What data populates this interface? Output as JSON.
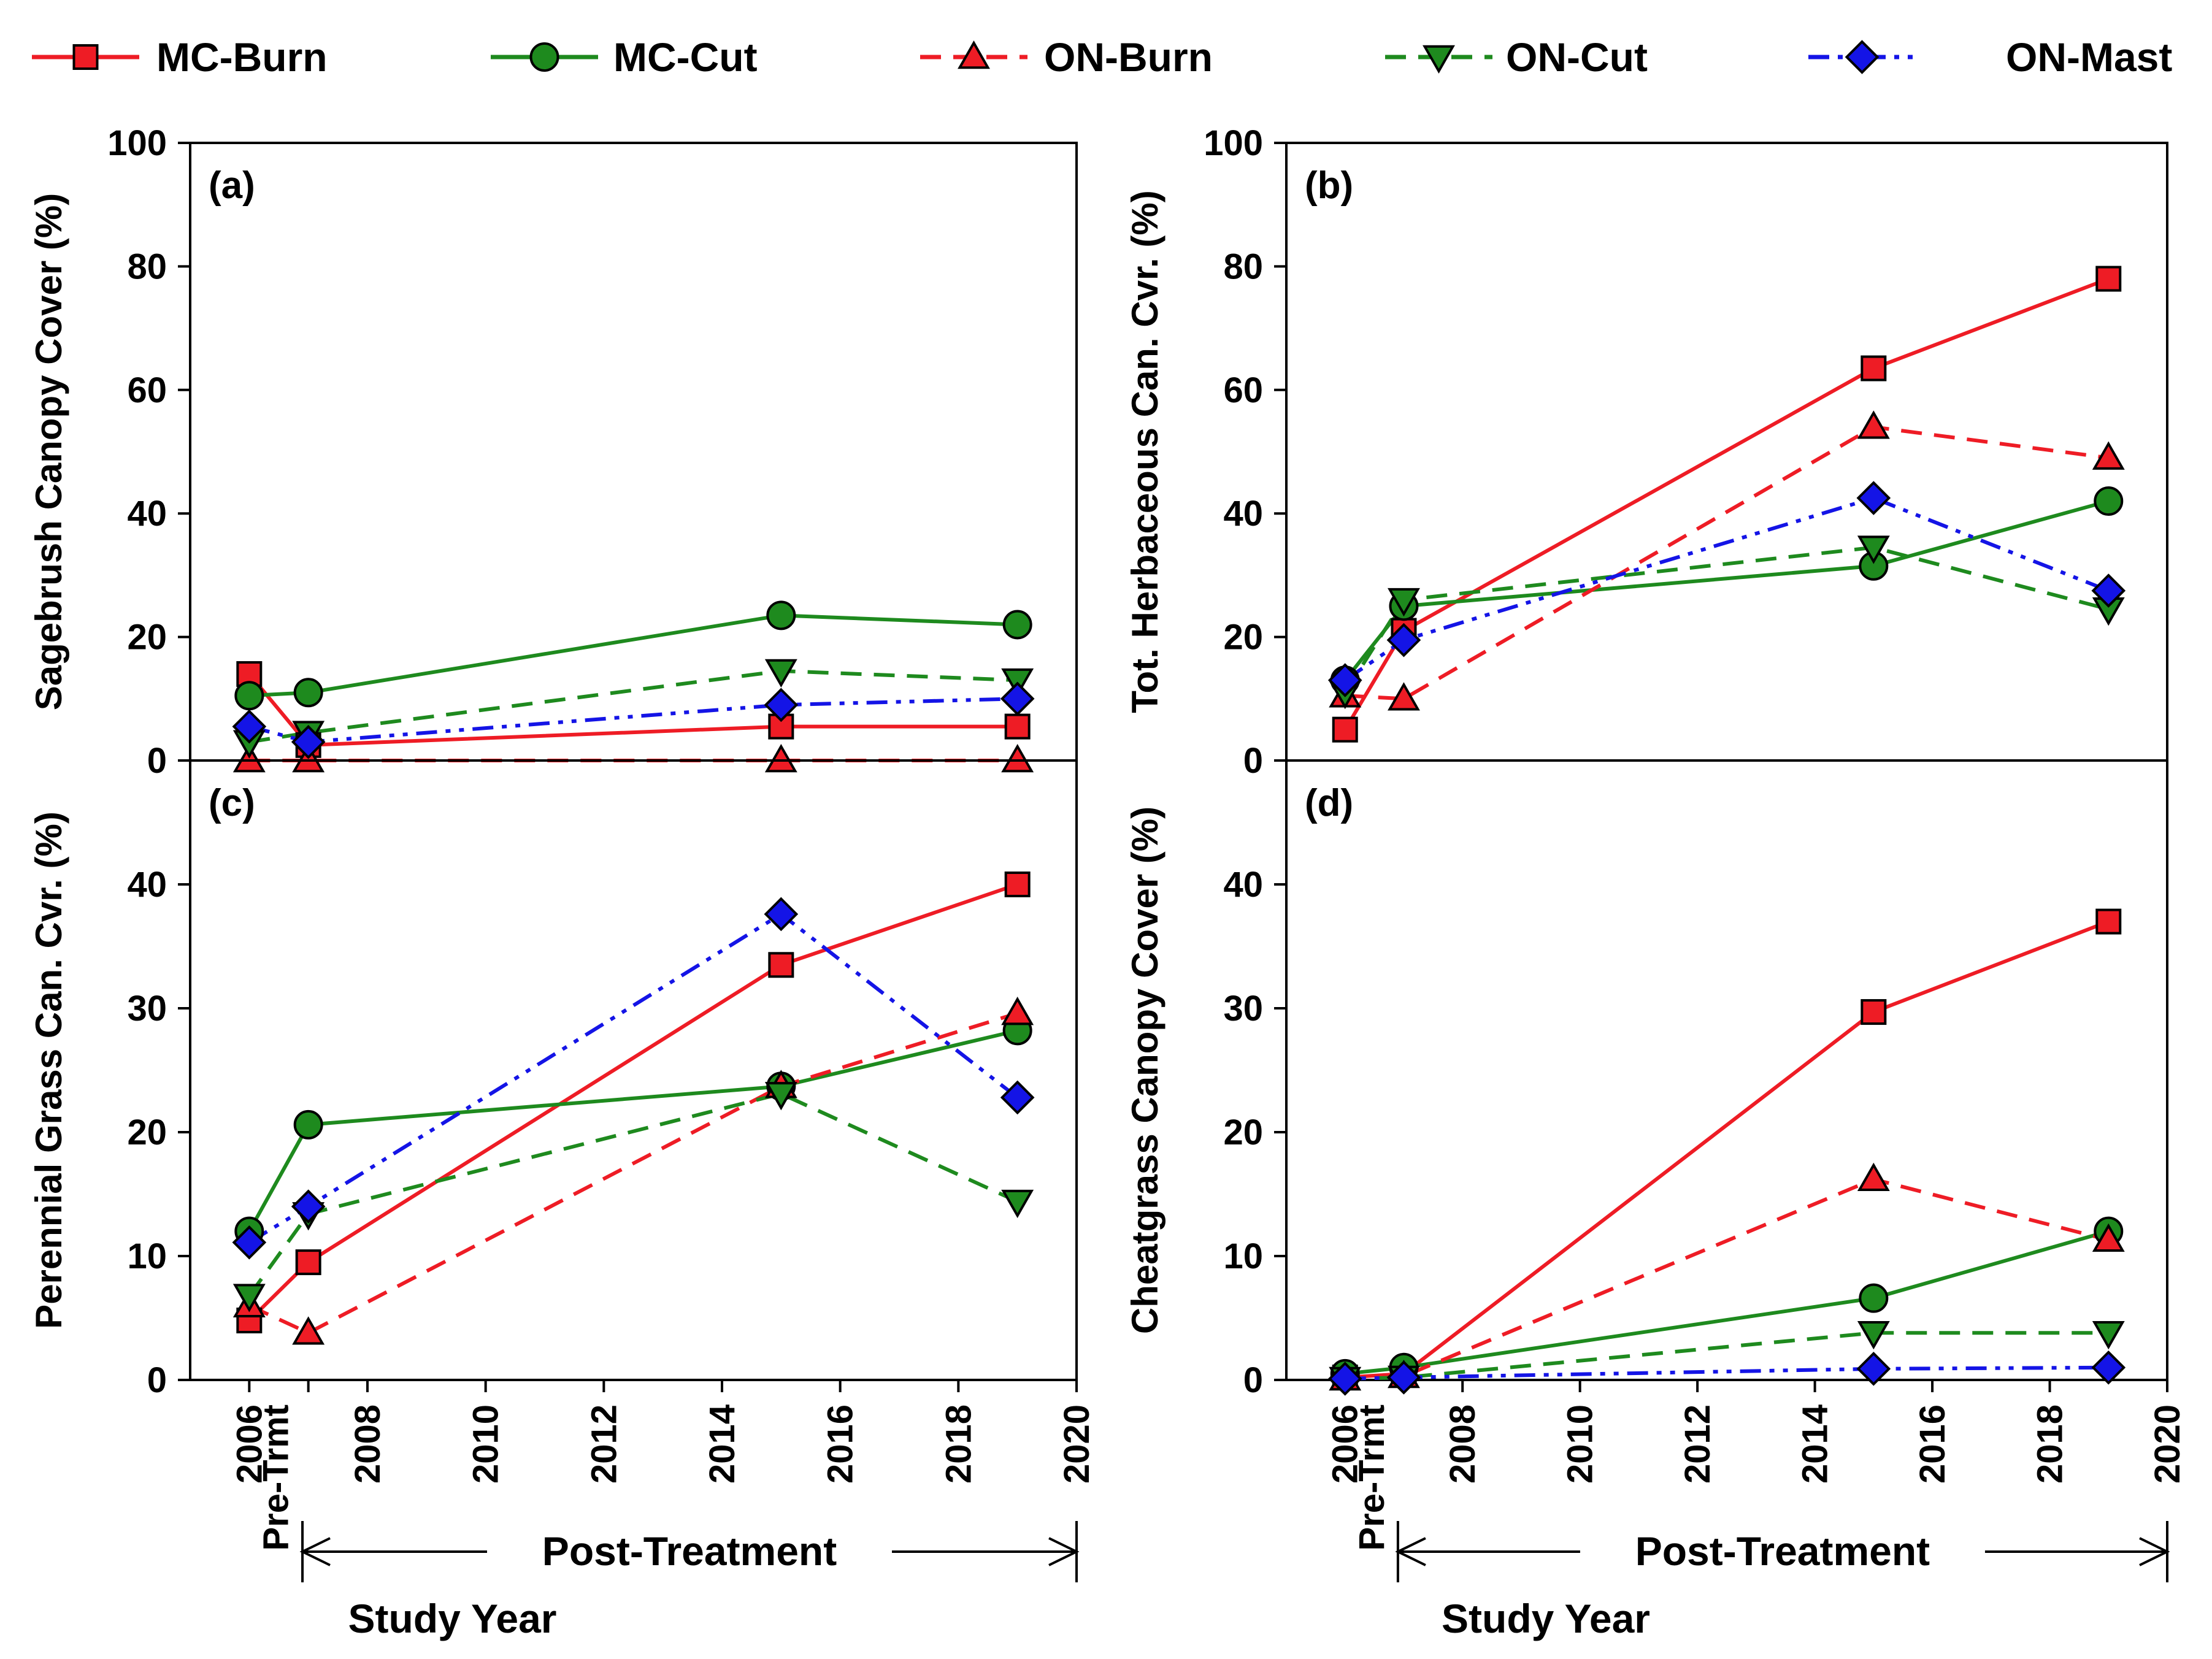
{
  "chart_data": {
    "type": "line",
    "xlabel": "Study Year",
    "legend": {
      "placement": "top",
      "entries": [
        {
          "name": "MC-Burn",
          "color": "#ee1c25",
          "marker": "square",
          "dash": "solid"
        },
        {
          "name": "MC-Cut",
          "color": "#1e8a1e",
          "marker": "circle",
          "dash": "solid"
        },
        {
          "name": "ON-Burn",
          "color": "#ee1c25",
          "marker": "triangle-up",
          "dash": "dash"
        },
        {
          "name": "ON-Cut",
          "color": "#1e8a1e",
          "marker": "triangle-down",
          "dash": "dash"
        },
        {
          "name": "ON-Mast",
          "color": "#1414e6",
          "marker": "diamond",
          "dash": "dashdotdot"
        }
      ]
    },
    "x_axis": {
      "xlim": [
        2005,
        2020
      ],
      "ticks": [
        2006,
        2008,
        2010,
        2012,
        2014,
        2016,
        2018,
        2020
      ],
      "tick_labels": [
        "2006",
        "2008",
        "2010",
        "2012",
        "2014",
        "2016",
        "2018",
        "2020"
      ],
      "pre_treatment_label": "Pre-Trmt",
      "post_treatment_label": "Post-Treatment",
      "post_treatment_range": [
        2006.9,
        2020
      ]
    },
    "panels": [
      {
        "label": "(a)",
        "ylabel": "Sagebrush Canopy Cover (%)",
        "ylim": [
          0,
          100
        ],
        "yticks": [
          0,
          20,
          40,
          60,
          80,
          100
        ],
        "series": [
          {
            "name": "MC-Burn",
            "x": [
              2006,
              2007,
              2015,
              2019
            ],
            "y": [
              14,
              2.5,
              5.5,
              5.5
            ]
          },
          {
            "name": "MC-Cut",
            "x": [
              2006,
              2007,
              2015,
              2019
            ],
            "y": [
              10.5,
              11,
              23.5,
              22
            ]
          },
          {
            "name": "ON-Burn",
            "x": [
              2006,
              2007,
              2015,
              2019
            ],
            "y": [
              0,
              0,
              0,
              0
            ]
          },
          {
            "name": "ON-Cut",
            "x": [
              2006,
              2007,
              2015,
              2019
            ],
            "y": [
              3,
              4.5,
              14.5,
              13
            ]
          },
          {
            "name": "ON-Mast",
            "x": [
              2006,
              2007,
              2015,
              2019
            ],
            "y": [
              5.5,
              3,
              9,
              10
            ]
          }
        ]
      },
      {
        "label": "(b)",
        "ylabel": "Tot. Herbaceous Can. Cvr. (%)",
        "ylim": [
          0,
          100
        ],
        "yticks": [
          0,
          20,
          40,
          60,
          80,
          100
        ],
        "series": [
          {
            "name": "MC-Burn",
            "x": [
              2006,
              2007,
              2015,
              2019
            ],
            "y": [
              5,
              21,
              63.5,
              78
            ]
          },
          {
            "name": "MC-Cut",
            "x": [
              2006,
              2007,
              2015,
              2019
            ],
            "y": [
              13,
              25,
              31.5,
              42
            ]
          },
          {
            "name": "ON-Burn",
            "x": [
              2006,
              2007,
              2015,
              2019
            ],
            "y": [
              10.5,
              10,
              54,
              49
            ]
          },
          {
            "name": "ON-Cut",
            "x": [
              2006,
              2007,
              2015,
              2019
            ],
            "y": [
              11,
              26,
              34.5,
              24.5
            ]
          },
          {
            "name": "ON-Mast",
            "x": [
              2006,
              2007,
              2015,
              2019
            ],
            "y": [
              13,
              19.5,
              42.5,
              27.5
            ]
          }
        ]
      },
      {
        "label": "(c)",
        "ylabel": "Perennial Grass Can. Cvr. (%)",
        "ylim": [
          0,
          50
        ],
        "yticks": [
          0,
          10,
          20,
          30,
          40
        ],
        "series": [
          {
            "name": "MC-Burn",
            "x": [
              2006,
              2007,
              2015,
              2019
            ],
            "y": [
              4.8,
              9.5,
              33.5,
              40
            ]
          },
          {
            "name": "MC-Cut",
            "x": [
              2006,
              2007,
              2015,
              2019
            ],
            "y": [
              12,
              20.6,
              23.7,
              28.2
            ]
          },
          {
            "name": "ON-Burn",
            "x": [
              2006,
              2007,
              2015,
              2019
            ],
            "y": [
              6,
              3.8,
              23.7,
              29.6
            ]
          },
          {
            "name": "ON-Cut",
            "x": [
              2006,
              2007,
              2015,
              2019
            ],
            "y": [
              6.8,
              13.4,
              23.1,
              14.4
            ]
          },
          {
            "name": "ON-Mast",
            "x": [
              2006,
              2007,
              2015,
              2019
            ],
            "y": [
              11.1,
              14,
              37.6,
              22.8
            ]
          }
        ]
      },
      {
        "label": "(d)",
        "ylabel": "Cheatgrass Canopy Cover (%)",
        "ylim": [
          0,
          50
        ],
        "yticks": [
          0,
          10,
          20,
          30,
          40
        ],
        "series": [
          {
            "name": "MC-Burn",
            "x": [
              2006,
              2007,
              2015,
              2019
            ],
            "y": [
              0.2,
              0.5,
              29.7,
              37
            ]
          },
          {
            "name": "MC-Cut",
            "x": [
              2006,
              2007,
              2015,
              2019
            ],
            "y": [
              0.5,
              1,
              6.6,
              12
            ]
          },
          {
            "name": "ON-Burn",
            "x": [
              2006,
              2007,
              2015,
              2019
            ],
            "y": [
              0.1,
              0.3,
              16.2,
              11.3
            ]
          },
          {
            "name": "ON-Cut",
            "x": [
              2006,
              2007,
              2015,
              2019
            ],
            "y": [
              0.1,
              0.2,
              3.8,
              3.8
            ]
          },
          {
            "name": "ON-Mast",
            "x": [
              2006,
              2007,
              2015,
              2019
            ],
            "y": [
              0.1,
              0.2,
              0.9,
              1
            ]
          }
        ]
      }
    ]
  }
}
